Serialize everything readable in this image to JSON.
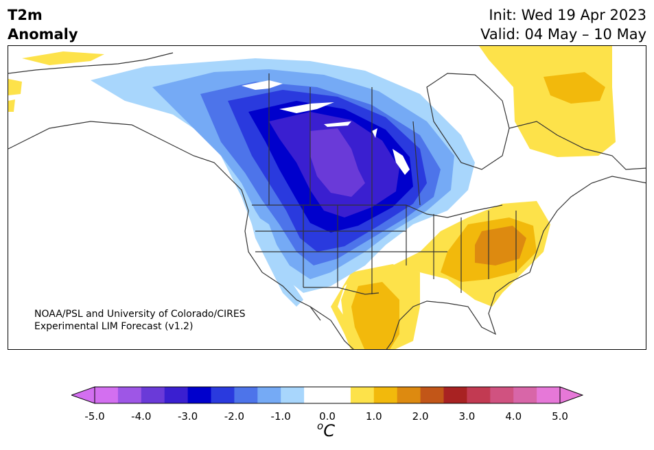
{
  "header": {
    "title_line1": "T2m",
    "title_line2": "Anomaly",
    "init_text": "Init: Wed 19 Apr 2023",
    "valid_text": "Valid: 04 May – 10 May"
  },
  "map": {
    "credit_line1": "NOAA/PSL and University of Colorado/CIRES",
    "credit_line2": "Experimental LIM Forecast (v1.2)",
    "region": "North America",
    "features": [
      {
        "name": "cold-anomaly-core",
        "level": "-4.0 to -3.5",
        "location": "Manitoba / North Dakota / Saskatchewan"
      },
      {
        "name": "cold-anomaly",
        "level": "-3.0 to -1.0",
        "location": "Central Canada and northern US Plains / Rockies"
      },
      {
        "name": "warm-anomaly",
        "level": "1.5 to 2.0",
        "location": "Southeastern US"
      },
      {
        "name": "warm-anomaly",
        "level": "1.0",
        "location": "Texas / northern Mexico"
      },
      {
        "name": "warm-anomaly",
        "level": "0.5 to 1.0",
        "location": "Labrador / Quebec"
      }
    ]
  },
  "colorbar": {
    "unit_base": "C",
    "unit_sup": "o",
    "tick_labels": [
      "-5.0",
      "-4.0",
      "-3.0",
      "-2.0",
      "-1.0",
      "0.0",
      "1.0",
      "2.0",
      "3.0",
      "4.0",
      "5.0"
    ],
    "colors": [
      "#d36ff0",
      "#9e56e6",
      "#6a3ad8",
      "#3a1fd0",
      "#0000cc",
      "#2a3ade",
      "#4d74ea",
      "#75aaf5",
      "#a8d6fc",
      "#ffffff",
      "#ffffff",
      "#fde24a",
      "#f2b90c",
      "#dd8a10",
      "#c25618",
      "#a82222",
      "#c23a52",
      "#d05280",
      "#d866a8",
      "#e678d8"
    ],
    "under_color": "#d36ff0",
    "over_color": "#e678d8"
  }
}
